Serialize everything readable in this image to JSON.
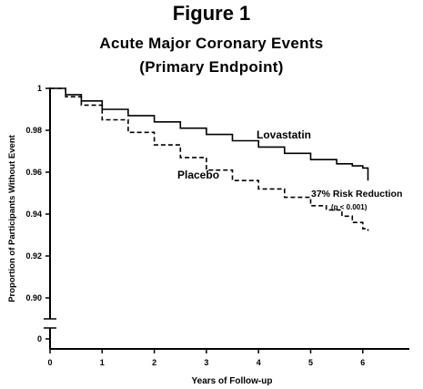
{
  "figure_label": "Figure 1",
  "chart_data": {
    "type": "line",
    "title": "Acute Major Coronary Events",
    "subtitle": "(Primary Endpoint)",
    "xlabel": "Years of Follow-up",
    "ylabel": "Proportion of Participants Without Event",
    "xlim": [
      0,
      7
    ],
    "ylim": [
      0.89,
      1.0
    ],
    "y_axis_break": true,
    "x_ticks": [
      "0",
      "1",
      "2",
      "3",
      "4",
      "5",
      "6"
    ],
    "y_ticks": [
      "1",
      "0.98",
      "0.96",
      "0.94",
      "0.92",
      "0.90",
      "0"
    ],
    "grid": false,
    "series": [
      {
        "name": "Lovastatin",
        "style": "solid",
        "x": [
          0,
          0.3,
          0.6,
          1.0,
          1.5,
          2.0,
          2.5,
          3.0,
          3.5,
          4.0,
          4.5,
          5.0,
          5.5,
          5.8,
          6.0,
          6.1
        ],
        "y": [
          1.0,
          0.997,
          0.994,
          0.99,
          0.987,
          0.984,
          0.981,
          0.978,
          0.975,
          0.972,
          0.969,
          0.966,
          0.964,
          0.963,
          0.962,
          0.956
        ]
      },
      {
        "name": "Placebo",
        "style": "dashed",
        "x": [
          0,
          0.3,
          0.6,
          1.0,
          1.5,
          2.0,
          2.5,
          3.0,
          3.5,
          4.0,
          4.5,
          5.0,
          5.3,
          5.6,
          5.8,
          6.0,
          6.1
        ],
        "y": [
          1.0,
          0.996,
          0.992,
          0.985,
          0.979,
          0.973,
          0.967,
          0.961,
          0.956,
          0.952,
          0.948,
          0.944,
          0.942,
          0.939,
          0.936,
          0.933,
          0.932
        ]
      }
    ],
    "annotations": [
      {
        "text": "37% Risk Reduction",
        "x": 5.2,
        "y": 0.947
      },
      {
        "text": "(p < 0.001)",
        "x": 5.4,
        "y": 0.942
      }
    ]
  }
}
